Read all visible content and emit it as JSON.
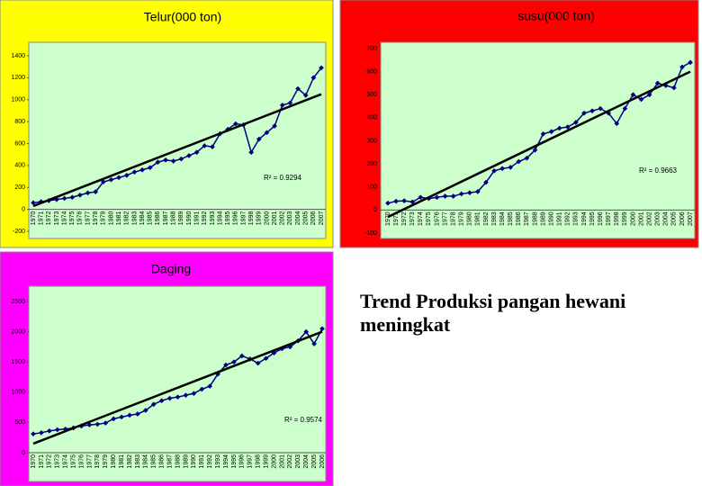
{
  "chart_data": [
    {
      "type": "line",
      "title": "Telur(000 ton)",
      "color": "#000080",
      "box_color": "#ffff00",
      "plot_color": "#ccffcc",
      "categories": [
        "1970",
        "1971",
        "1972",
        "1973",
        "1974",
        "1975",
        "1976",
        "1977",
        "1978",
        "1979",
        "1980",
        "1981",
        "1982",
        "1983",
        "1984",
        "1985",
        "1986",
        "1987",
        "1988",
        "1989",
        "1990",
        "1991",
        "1992",
        "1993",
        "1994",
        "1995",
        "1996",
        "1997",
        "1998",
        "1999",
        "2000",
        "2001",
        "2002",
        "2003",
        "2004",
        "2005",
        "2006",
        "2007"
      ],
      "values": [
        60,
        70,
        80,
        90,
        100,
        110,
        130,
        150,
        160,
        250,
        270,
        290,
        310,
        340,
        360,
        380,
        430,
        450,
        440,
        460,
        490,
        520,
        580,
        570,
        690,
        730,
        780,
        770,
        520,
        640,
        700,
        760,
        950,
        970,
        1100,
        1040,
        1200,
        1290
      ],
      "trend_start": 30,
      "trend_end": 1050,
      "annotation": "R² = 0.9294",
      "ylim": [
        -200,
        1400
      ],
      "yticks": [
        -200,
        0,
        200,
        400,
        600,
        800,
        1000,
        1200,
        1400
      ]
    },
    {
      "type": "line",
      "title": "susu(000 ton)",
      "color": "#000080",
      "box_color": "#ff0000",
      "plot_color": "#ccffcc",
      "categories": [
        "1970",
        "1971",
        "1972",
        "1973",
        "1974",
        "1975",
        "1976",
        "1977",
        "1978",
        "1979",
        "1980",
        "1981",
        "1982",
        "1983",
        "1984",
        "1985",
        "1986",
        "1987",
        "1988",
        "1989",
        "1990",
        "1991",
        "1992",
        "1993",
        "1994",
        "1995",
        "1996",
        "1997",
        "1998",
        "1999",
        "2000",
        "2001",
        "2002",
        "2003",
        "2004",
        "2005",
        "2006",
        "2007"
      ],
      "values": [
        30,
        38,
        40,
        35,
        55,
        50,
        55,
        60,
        60,
        70,
        75,
        80,
        120,
        170,
        180,
        185,
        210,
        225,
        260,
        330,
        340,
        355,
        360,
        380,
        420,
        430,
        440,
        420,
        375,
        440,
        500,
        480,
        500,
        550,
        540,
        530,
        620,
        640
      ],
      "trend_start": -30,
      "trend_end": 600,
      "annotation": "R² = 0.9663",
      "ylim": [
        -100,
        700
      ],
      "yticks": [
        -100,
        0,
        100,
        200,
        300,
        400,
        500,
        600,
        700
      ]
    },
    {
      "type": "line",
      "title": "Daging",
      "color": "#000080",
      "box_color": "#ff00ff",
      "plot_color": "#ccffcc",
      "categories": [
        "1970",
        "1971",
        "1972",
        "1973",
        "1974",
        "1975",
        "1976",
        "1977",
        "1978",
        "1979",
        "1980",
        "1981",
        "1982",
        "1983",
        "1984",
        "1985",
        "1986",
        "1987",
        "1988",
        "1989",
        "1990",
        "1991",
        "1992",
        "1993",
        "1994",
        "1995",
        "1996",
        "1997",
        "1998",
        "1999",
        "2000",
        "2001",
        "2002",
        "2003",
        "2004",
        "2005",
        "2006"
      ],
      "values": [
        310,
        330,
        360,
        380,
        390,
        410,
        440,
        460,
        470,
        490,
        560,
        590,
        620,
        640,
        700,
        800,
        860,
        900,
        920,
        950,
        980,
        1050,
        1100,
        1300,
        1450,
        1500,
        1600,
        1550,
        1480,
        1560,
        1650,
        1720,
        1750,
        1850,
        2000,
        1800,
        2050
      ],
      "trend_start": 150,
      "trend_end": 2000,
      "annotation": "R² = 0.9574",
      "ylim": [
        0,
        2500
      ],
      "yticks": [
        0,
        500,
        1000,
        1500,
        2000,
        2500
      ]
    }
  ],
  "slide_text": "Trend Produksi pangan hewani  meningkat"
}
